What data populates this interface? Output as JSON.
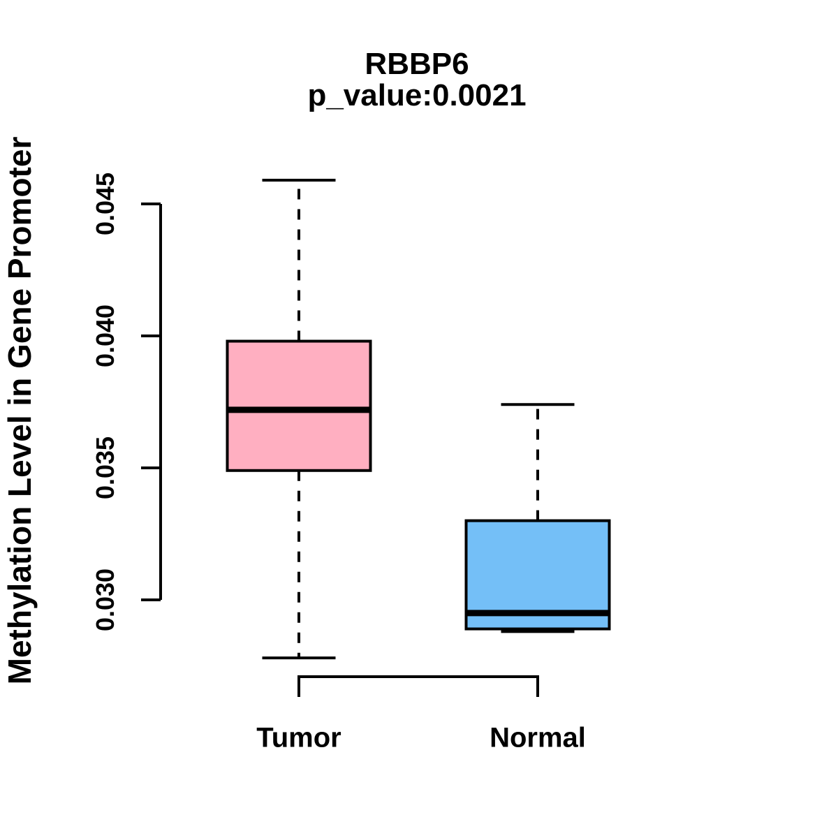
{
  "title": "RBBP6",
  "subtitle": "p_value:0.0021",
  "p_value": "0.0021",
  "gene": "RBBP6",
  "chart_data": {
    "type": "boxplot",
    "title": "RBBP6",
    "subtitle": "p_value:0.0021",
    "xlabel": "",
    "ylabel": "Methylation Level in Gene Promoter",
    "categories": [
      "Tumor",
      "Normal"
    ],
    "yticks": [
      0.03,
      0.035,
      0.04,
      0.045
    ],
    "ytick_labels": [
      "0.030",
      "0.035",
      "0.040",
      "0.045"
    ],
    "ylim": [
      0.0271,
      0.0466
    ],
    "grid": "off",
    "legend": "none",
    "whisker_line_style": "dashed",
    "line_color": "#000000",
    "background_color": "#ffffff",
    "series": [
      {
        "name": "Tumor",
        "fill_color": "#FFAFC1",
        "whisker_low": 0.0278,
        "q1": 0.0349,
        "median": 0.0372,
        "q3": 0.0398,
        "whisker_high": 0.0459
      },
      {
        "name": "Normal",
        "fill_color": "#74BFF7",
        "whisker_low": 0.0288,
        "q1": 0.0289,
        "median": 0.0295,
        "q3": 0.033,
        "whisker_high": 0.0374
      }
    ]
  }
}
